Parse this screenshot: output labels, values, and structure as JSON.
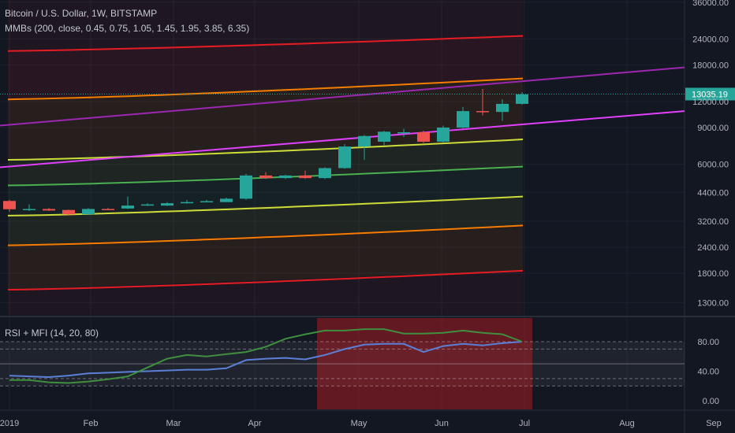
{
  "legend": {
    "title": "Bitcoin / U.S. Dollar, 1W, BITSTAMP",
    "indicator1": "MMBs (200, close, 0.45, 0.75, 1.05, 1.45, 1.95, 3.85, 6.35)",
    "indicator2": "RSI + MFI (14, 20, 80)"
  },
  "colors": {
    "background": "#131722",
    "up": "#26a69a",
    "down": "#ef5350",
    "purple": "#9c27b0",
    "magenta": "#e040fb",
    "red": "#e51c23",
    "orange": "#f57c00",
    "yellow": "#cddc39",
    "green": "#4caf50",
    "rsi": "#5b7fd6",
    "mfi": "#3f8f3f"
  },
  "chart_data": [
    {
      "type": "candlestick",
      "title": "Bitcoin / U.S. Dollar, 1W, BITSTAMP",
      "scale": "log",
      "ylim": [
        1100,
        36000
      ],
      "y_ticks": [
        1300,
        1800,
        2400,
        3200,
        4400,
        6000,
        9000,
        12000,
        18000,
        24000,
        36000
      ],
      "y_tick_labels": [
        "1300.00",
        "1800.00",
        "2400.00",
        "3200.00",
        "4400.00",
        "6000.00",
        "9000.00",
        "12000.00",
        "18000.00",
        "24000.00",
        "36000.00"
      ],
      "x_tick_labels": [
        "2019",
        "Feb",
        "Mar",
        "Apr",
        "May",
        "Jun",
        "Jul",
        "Aug",
        "Sep"
      ],
      "last_price_label": "13035.19",
      "last_price": 13035,
      "candles": [
        {
          "o": 4000,
          "h": 4050,
          "l": 3550,
          "c": 3650
        },
        {
          "o": 3640,
          "h": 3850,
          "l": 3580,
          "c": 3660
        },
        {
          "o": 3660,
          "h": 3700,
          "l": 3580,
          "c": 3600
        },
        {
          "o": 3620,
          "h": 3640,
          "l": 3400,
          "c": 3450
        },
        {
          "o": 3450,
          "h": 3700,
          "l": 3420,
          "c": 3660
        },
        {
          "o": 3660,
          "h": 3700,
          "l": 3620,
          "c": 3650
        },
        {
          "o": 3680,
          "h": 4200,
          "l": 3660,
          "c": 3800
        },
        {
          "o": 3800,
          "h": 3900,
          "l": 3780,
          "c": 3850
        },
        {
          "o": 3800,
          "h": 3950,
          "l": 3780,
          "c": 3900
        },
        {
          "o": 3900,
          "h": 4050,
          "l": 3880,
          "c": 3950
        },
        {
          "o": 3950,
          "h": 4050,
          "l": 3950,
          "c": 3990
        },
        {
          "o": 3950,
          "h": 4150,
          "l": 3950,
          "c": 4100
        },
        {
          "o": 4100,
          "h": 5400,
          "l": 4050,
          "c": 5300
        },
        {
          "o": 5300,
          "h": 5500,
          "l": 5100,
          "c": 5150
        },
        {
          "o": 5150,
          "h": 5350,
          "l": 5100,
          "c": 5300
        },
        {
          "o": 5300,
          "h": 5600,
          "l": 5100,
          "c": 5150
        },
        {
          "o": 5150,
          "h": 5800,
          "l": 5100,
          "c": 5750
        },
        {
          "o": 5750,
          "h": 7500,
          "l": 5700,
          "c": 7300
        },
        {
          "o": 7300,
          "h": 8300,
          "l": 6300,
          "c": 8200
        },
        {
          "o": 7700,
          "h": 8700,
          "l": 7400,
          "c": 8600
        },
        {
          "o": 8500,
          "h": 8900,
          "l": 8100,
          "c": 8550
        },
        {
          "o": 8550,
          "h": 8700,
          "l": 7600,
          "c": 7700
        },
        {
          "o": 7700,
          "h": 9200,
          "l": 7600,
          "c": 9000
        },
        {
          "o": 9000,
          "h": 11300,
          "l": 8900,
          "c": 10800
        },
        {
          "o": 10800,
          "h": 13800,
          "l": 10300,
          "c": 10700
        },
        {
          "o": 10700,
          "h": 12300,
          "l": 9700,
          "c": 11700
        },
        {
          "o": 11700,
          "h": 13300,
          "l": 11600,
          "c": 13000
        }
      ],
      "bands": [
        {
          "name": "red-upper",
          "color": "#e51c23",
          "start": 21000,
          "end": 24800
        },
        {
          "name": "orange-upper",
          "color": "#f57c00",
          "start": 12300,
          "end": 15500
        },
        {
          "name": "yellow-upper",
          "color": "#cddc39",
          "start": 6300,
          "end": 7900
        },
        {
          "name": "green-mid",
          "color": "#4caf50",
          "start": 4750,
          "end": 5850
        },
        {
          "name": "yellow-lower",
          "color": "#cddc39",
          "start": 3400,
          "end": 4200
        },
        {
          "name": "orange-lower",
          "color": "#f57c00",
          "start": 2450,
          "end": 3050
        },
        {
          "name": "red-lower",
          "color": "#e51c23",
          "start": 1500,
          "end": 1850
        }
      ],
      "trendlines": [
        {
          "name": "purple-trend",
          "color": "#9c27b0",
          "start": 9200,
          "end": 17500
        },
        {
          "name": "magenta-trend",
          "color": "#e040fb",
          "start": 5800,
          "end": 10800
        }
      ]
    },
    {
      "type": "line",
      "title": "RSI + MFI (14, 20, 80)",
      "ylim": [
        -10,
        110
      ],
      "y_ticks": [
        0,
        40,
        80
      ],
      "y_tick_labels": [
        "0.00",
        "40.00",
        "80.00"
      ],
      "levels": [
        80,
        70,
        50,
        30,
        20
      ],
      "series": [
        {
          "name": "RSI",
          "color": "#5b7fd6",
          "values": [
            34,
            33,
            32,
            34,
            37,
            38,
            39,
            40,
            41,
            42,
            42,
            44,
            55,
            57,
            58,
            56,
            62,
            70,
            76,
            77,
            77,
            66,
            74,
            77,
            75,
            78,
            80
          ]
        },
        {
          "name": "MFI",
          "color": "#3f8f3f",
          "values": [
            28,
            28,
            25,
            24,
            26,
            29,
            33,
            45,
            57,
            62,
            60,
            63,
            66,
            73,
            84,
            90,
            95,
            95,
            97,
            97,
            91,
            91,
            92,
            95,
            92,
            90,
            80
          ]
        }
      ],
      "highlight_from_index": 16
    }
  ]
}
